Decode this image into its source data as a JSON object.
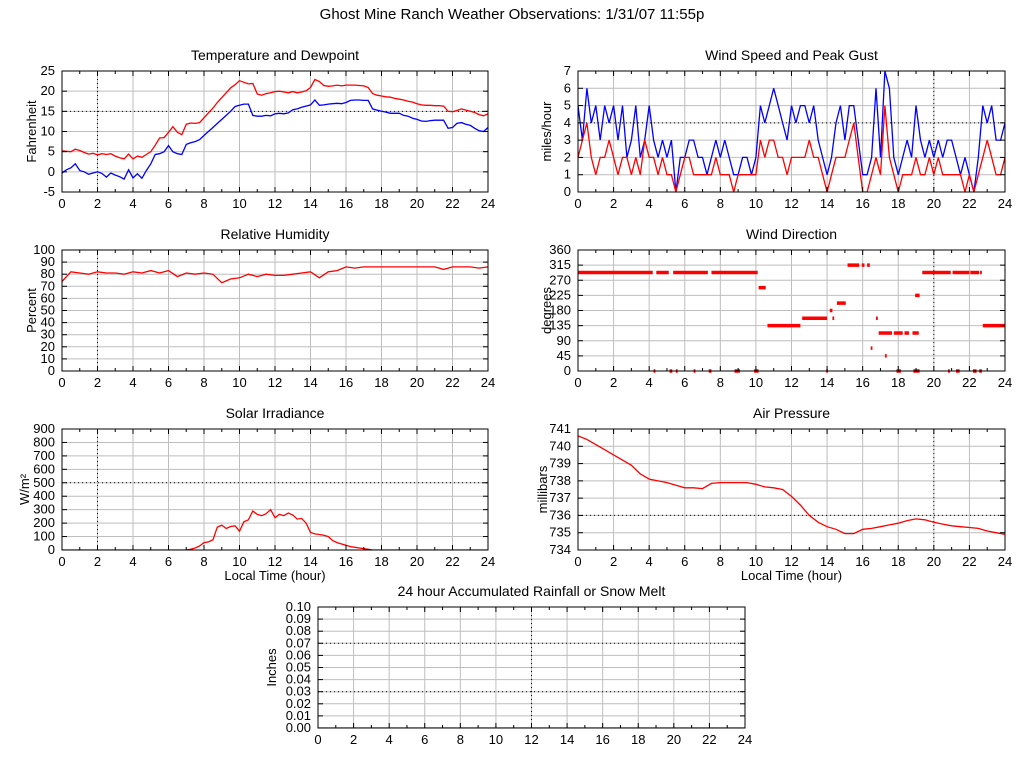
{
  "page_title": "Ghost Mine Ranch Weather Observations: 1/31/07 11:55p",
  "colors": {
    "red": "#ff0000",
    "blue": "#0000ff",
    "grid": "#bebebe",
    "border": "#000000",
    "background": "#ffffff"
  },
  "chart_data": {
    "temperature": {
      "type": "line",
      "title": "Temperature and Dewpoint",
      "ylabel": "Fahrenheit",
      "xlabel": "",
      "xlim": [
        0,
        24
      ],
      "ylim": [
        -5,
        25
      ],
      "xticks": [
        0,
        2,
        4,
        6,
        8,
        10,
        12,
        14,
        16,
        18,
        20,
        22,
        24
      ],
      "yticks": [
        -5,
        0,
        5,
        10,
        15,
        20,
        25
      ],
      "xminor": 1,
      "dotted_v": [
        2
      ],
      "dotted_h": [
        15
      ],
      "x_start": 0,
      "x_step": 0.25,
      "series": [
        {
          "name": "temperature",
          "color": "red",
          "values": [
            5.2,
            5.1,
            5.0,
            5.6,
            5.3,
            4.8,
            4.4,
            4.6,
            4.2,
            4.5,
            4.3,
            4.5,
            3.9,
            3.5,
            3.2,
            4.4,
            3.2,
            3.9,
            3.6,
            4.3,
            5.0,
            6.6,
            8.4,
            8.5,
            9.8,
            11.2,
            9.8,
            9.2,
            11.8,
            12.1,
            12.0,
            12.2,
            13.4,
            14.6,
            15.8,
            17.2,
            18.4,
            19.6,
            20.8,
            21.6,
            22.6,
            22.2,
            21.8,
            21.9,
            19.3,
            19.0,
            19.4,
            19.6,
            19.9,
            20.0,
            19.8,
            19.6,
            19.9,
            19.6,
            19.8,
            20.1,
            20.9,
            22.9,
            22.4,
            21.4,
            21.2,
            21.3,
            21.5,
            21.3,
            21.5,
            21.5,
            21.5,
            21.4,
            21.3,
            20.9,
            19.4,
            19.0,
            18.8,
            18.6,
            18.5,
            18.2,
            18.0,
            17.8,
            17.5,
            17.3,
            16.9,
            16.6,
            16.5,
            16.5,
            16.4,
            16.4,
            16.3,
            15.0,
            14.9,
            15.2,
            15.6,
            15.3,
            15.0,
            14.7,
            14.2,
            13.9,
            14.4
          ]
        },
        {
          "name": "dewpoint",
          "color": "blue",
          "values": [
            -0.3,
            0.5,
            1.0,
            2.0,
            0.3,
            0.0,
            -0.6,
            -0.3,
            0.0,
            -0.4,
            -1.3,
            -0.3,
            -0.8,
            -1.2,
            -1.8,
            0.5,
            -1.5,
            -0.5,
            -1.6,
            0.3,
            2.0,
            4.3,
            4.5,
            5.0,
            6.5,
            5.0,
            4.5,
            4.3,
            6.8,
            7.2,
            7.5,
            8.0,
            9.0,
            10.0,
            11.0,
            12.0,
            13.0,
            14.0,
            15.0,
            16.2,
            16.5,
            16.8,
            16.8,
            14.0,
            13.8,
            13.8,
            14.0,
            13.9,
            14.4,
            14.5,
            14.4,
            14.6,
            15.4,
            15.6,
            16.0,
            16.3,
            16.6,
            17.8,
            16.5,
            16.6,
            16.8,
            16.9,
            17.0,
            16.9,
            17.2,
            17.7,
            17.8,
            17.8,
            17.7,
            17.7,
            15.6,
            15.3,
            15.0,
            14.8,
            14.5,
            14.5,
            14.5,
            14.0,
            13.8,
            13.3,
            13.0,
            12.6,
            12.5,
            12.7,
            12.8,
            12.8,
            12.8,
            10.8,
            11.0,
            12.0,
            12.2,
            11.8,
            11.5,
            10.8,
            10.2,
            10.0,
            11.0
          ]
        }
      ]
    },
    "wind_speed": {
      "type": "line",
      "title": "Wind Speed and Peak Gust",
      "ylabel": "miles/hour",
      "xlabel": "",
      "xlim": [
        0,
        24
      ],
      "ylim": [
        0,
        7
      ],
      "xticks": [
        0,
        2,
        4,
        6,
        8,
        10,
        12,
        14,
        16,
        18,
        20,
        22,
        24
      ],
      "yticks": [
        0,
        1,
        2,
        3,
        4,
        5,
        6,
        7
      ],
      "xminor": 1,
      "dotted_v": [
        20
      ],
      "dotted_h": [
        4
      ],
      "x_start": 0,
      "x_step": 0.25,
      "series": [
        {
          "name": "peak-gust",
          "color": "blue",
          "values": [
            5,
            3,
            6,
            4,
            5,
            3,
            5,
            4,
            5,
            3,
            5,
            2,
            3,
            5,
            2,
            3,
            5,
            3,
            2,
            3,
            2,
            3,
            0,
            2,
            2,
            3,
            3,
            2,
            2,
            1,
            2,
            3,
            2,
            3,
            2,
            1,
            1,
            2,
            2,
            1,
            2,
            5,
            4,
            5,
            6,
            5,
            4,
            3,
            5,
            4,
            5,
            5,
            4,
            5,
            3,
            2,
            1,
            2,
            4,
            5,
            3,
            5,
            5,
            3,
            1,
            1,
            2,
            6,
            2,
            7,
            6,
            2,
            1,
            2,
            3,
            2,
            5,
            3,
            2,
            3,
            2,
            3,
            2,
            3,
            3,
            2,
            1,
            2,
            1,
            0,
            2,
            5,
            4,
            5,
            3,
            3,
            4
          ]
        },
        {
          "name": "wind-speed",
          "color": "red",
          "values": [
            2,
            3,
            4,
            2,
            1,
            2,
            2,
            3,
            2,
            1,
            2,
            2,
            1,
            2,
            1,
            3,
            2,
            2,
            1,
            2,
            1,
            1,
            0,
            1,
            2,
            2,
            1,
            1,
            1,
            1,
            1,
            2,
            1,
            1,
            1,
            0,
            1,
            1,
            1,
            1,
            1,
            3,
            2,
            3,
            3,
            2,
            2,
            1,
            2,
            2,
            2,
            2,
            3,
            2,
            2,
            1,
            0,
            1,
            2,
            2,
            2,
            3,
            4,
            2,
            0,
            0,
            1,
            2,
            1,
            5,
            2,
            1,
            0,
            1,
            1,
            1,
            2,
            1,
            1,
            2,
            1,
            2,
            1,
            1,
            1,
            1,
            1,
            0,
            1,
            0,
            1,
            2,
            3,
            2,
            1,
            1,
            2
          ]
        }
      ]
    },
    "humidity": {
      "type": "line",
      "title": "Relative Humidity",
      "ylabel": "Percent",
      "xlabel": "",
      "xlim": [
        0,
        24
      ],
      "ylim": [
        0,
        100
      ],
      "xticks": [
        0,
        2,
        4,
        6,
        8,
        10,
        12,
        14,
        16,
        18,
        20,
        22,
        24
      ],
      "yticks": [
        0,
        10,
        20,
        30,
        40,
        50,
        60,
        70,
        80,
        90,
        100
      ],
      "xminor": 1,
      "dotted_v": [
        2
      ],
      "dotted_h": [],
      "x_start": 0,
      "x_step": 0.5,
      "series": [
        {
          "name": "relative-humidity",
          "color": "red",
          "values": [
            74,
            82,
            81,
            80,
            82,
            81,
            81,
            80,
            82,
            81,
            83,
            81,
            83,
            78,
            81,
            80,
            81,
            80,
            73,
            76,
            77,
            80,
            78,
            80,
            79,
            79,
            80,
            81,
            82,
            77,
            82,
            83,
            86,
            85,
            86,
            86,
            86,
            86,
            86,
            86,
            86,
            86,
            86,
            84,
            86,
            86,
            86,
            85,
            86
          ]
        }
      ]
    },
    "wind_direction": {
      "type": "segments",
      "title": "Wind Direction",
      "ylabel": "degrees",
      "xlabel": "",
      "xlim": [
        0,
        24
      ],
      "ylim": [
        0,
        360
      ],
      "xticks": [
        0,
        2,
        4,
        6,
        8,
        10,
        12,
        14,
        16,
        18,
        20,
        22,
        24
      ],
      "yticks": [
        0,
        45,
        90,
        135,
        180,
        225,
        270,
        315,
        360
      ],
      "xminor": 1,
      "dotted_v": [
        20
      ],
      "dotted_h": [],
      "segments": [
        [
          0,
          4.2,
          293
        ],
        [
          4.4,
          5.1,
          293
        ],
        [
          5.35,
          7.3,
          293
        ],
        [
          7.5,
          10.1,
          293
        ],
        [
          10.15,
          10.55,
          248
        ],
        [
          10.65,
          12.5,
          135
        ],
        [
          12.6,
          14.0,
          157
        ],
        [
          14.3,
          14.4,
          157
        ],
        [
          16.75,
          16.85,
          157
        ],
        [
          14.15,
          14.3,
          180
        ],
        [
          14.55,
          15.05,
          202
        ],
        [
          15.15,
          15.8,
          315
        ],
        [
          15.95,
          16.1,
          315
        ],
        [
          16.25,
          16.4,
          315
        ],
        [
          16.45,
          16.55,
          68
        ],
        [
          17.25,
          17.35,
          45
        ],
        [
          16.9,
          17.65,
          113
        ],
        [
          17.75,
          18.25,
          113
        ],
        [
          18.35,
          18.6,
          113
        ],
        [
          18.8,
          19.15,
          113
        ],
        [
          18.95,
          19.2,
          225
        ],
        [
          19.35,
          20.95,
          293
        ],
        [
          21.05,
          22.0,
          293
        ],
        [
          22.05,
          22.55,
          293
        ],
        [
          22.6,
          22.7,
          293
        ],
        [
          22.75,
          24,
          135
        ],
        [
          4.25,
          4.35,
          0
        ],
        [
          5.15,
          5.3,
          0
        ],
        [
          5.5,
          5.6,
          0
        ],
        [
          6.5,
          6.6,
          0
        ],
        [
          7.35,
          7.5,
          0
        ],
        [
          8.8,
          9.1,
          0
        ],
        [
          9.9,
          10.15,
          0
        ],
        [
          13.95,
          14.05,
          0
        ],
        [
          17.9,
          18.15,
          0
        ],
        [
          18.85,
          19.2,
          0
        ],
        [
          20.8,
          20.9,
          0
        ],
        [
          21.25,
          21.45,
          0
        ],
        [
          22.2,
          22.4,
          0
        ],
        [
          22.55,
          22.7,
          0
        ]
      ],
      "segment_color": "red"
    },
    "solar": {
      "type": "line",
      "title": "Solar Irradiance",
      "ylabel": "W/m²",
      "xlabel": "Local Time (hour)",
      "xlim": [
        0,
        24
      ],
      "ylim": [
        0,
        900
      ],
      "xticks": [
        0,
        2,
        4,
        6,
        8,
        10,
        12,
        14,
        16,
        18,
        20,
        22,
        24
      ],
      "yticks": [
        0,
        100,
        200,
        300,
        400,
        500,
        600,
        700,
        800,
        900
      ],
      "xminor": 1,
      "dotted_v": [
        2
      ],
      "dotted_h": [
        500
      ],
      "x_start": 0,
      "x_step": 0.25,
      "series": [
        {
          "name": "solar-irradiance",
          "color": "red",
          "values": [
            0,
            0,
            0,
            0,
            0,
            0,
            0,
            0,
            0,
            0,
            0,
            0,
            0,
            0,
            0,
            0,
            0,
            0,
            0,
            0,
            0,
            0,
            0,
            0,
            0,
            0,
            0,
            0,
            0,
            5,
            15,
            30,
            55,
            60,
            75,
            170,
            185,
            160,
            175,
            180,
            140,
            210,
            225,
            290,
            265,
            255,
            270,
            300,
            240,
            265,
            255,
            275,
            260,
            230,
            235,
            200,
            130,
            120,
            115,
            110,
            100,
            70,
            55,
            45,
            35,
            25,
            20,
            15,
            10,
            5,
            0,
            0,
            0,
            0,
            0,
            0,
            0,
            0,
            0,
            0,
            0,
            0,
            0,
            0,
            0,
            0,
            0,
            0,
            0,
            0,
            0,
            0,
            0,
            0,
            0,
            0,
            0
          ]
        }
      ]
    },
    "pressure": {
      "type": "line",
      "title": "Air Pressure",
      "ylabel": "millibars",
      "xlabel": "Local Time (hour)",
      "xlim": [
        0,
        24
      ],
      "ylim": [
        734,
        741
      ],
      "xticks": [
        0,
        2,
        4,
        6,
        8,
        10,
        12,
        14,
        16,
        18,
        20,
        22,
        24
      ],
      "yticks": [
        734,
        735,
        736,
        737,
        738,
        739,
        740,
        741
      ],
      "xminor": 1,
      "dotted_v": [
        20
      ],
      "dotted_h": [
        736
      ],
      "x_start": 0,
      "x_step": 0.5,
      "series": [
        {
          "name": "air-pressure",
          "color": "red",
          "values": [
            740.6,
            740.4,
            740.1,
            739.8,
            739.5,
            739.2,
            738.9,
            738.4,
            738.1,
            738.0,
            737.9,
            737.75,
            737.6,
            737.6,
            737.55,
            737.85,
            737.9,
            737.9,
            737.9,
            737.9,
            737.8,
            737.65,
            737.6,
            737.5,
            737.1,
            736.6,
            736.0,
            735.6,
            735.35,
            735.2,
            734.95,
            734.95,
            735.2,
            735.25,
            735.35,
            735.45,
            735.55,
            735.7,
            735.8,
            735.75,
            735.6,
            735.5,
            735.4,
            735.35,
            735.3,
            735.25,
            735.1,
            735.0,
            734.9
          ]
        }
      ]
    },
    "rainfall": {
      "type": "line",
      "title": "24 hour Accumulated Rainfall or Snow Melt",
      "ylabel": "Inches",
      "xlabel": "",
      "xlim": [
        0,
        24
      ],
      "ylim": [
        0,
        0.1
      ],
      "xticks": [
        0,
        2,
        4,
        6,
        8,
        10,
        12,
        14,
        16,
        18,
        20,
        22,
        24
      ],
      "yticks": [
        0,
        0.01,
        0.02,
        0.03,
        0.04,
        0.05,
        0.06,
        0.07,
        0.08,
        0.09,
        0.1
      ],
      "ytick_labels": [
        "0.00",
        "0.01",
        "0.02",
        "0.03",
        "0.04",
        "0.05",
        "0.06",
        "0.07",
        "0.08",
        "0.09",
        "0.10"
      ],
      "xminor": 1,
      "dotted_v": [
        12
      ],
      "dotted_h": [
        0.03,
        0.07
      ],
      "x_start": 0,
      "x_step": 24,
      "series": [
        {
          "name": "accumulated-rainfall",
          "color": "red",
          "values": [
            0,
            0
          ]
        }
      ]
    }
  }
}
